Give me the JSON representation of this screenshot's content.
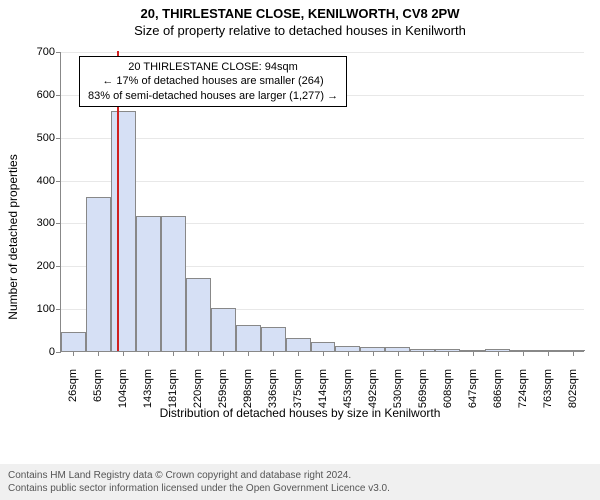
{
  "header": {
    "address": "20, THIRLESTANE CLOSE, KENILWORTH, CV8 2PW",
    "subtitle": "Size of property relative to detached houses in Kenilworth"
  },
  "chart": {
    "type": "histogram",
    "ylabel": "Number of detached properties",
    "xlabel": "Distribution of detached houses by size in Kenilworth",
    "ylim": [
      0,
      700
    ],
    "ytick_step": 100,
    "yticks": [
      0,
      100,
      200,
      300,
      400,
      500,
      600,
      700
    ],
    "xticks": [
      "26sqm",
      "65sqm",
      "104sqm",
      "143sqm",
      "181sqm",
      "220sqm",
      "259sqm",
      "298sqm",
      "336sqm",
      "375sqm",
      "414sqm",
      "453sqm",
      "492sqm",
      "530sqm",
      "569sqm",
      "608sqm",
      "647sqm",
      "686sqm",
      "724sqm",
      "763sqm",
      "802sqm"
    ],
    "bar_fill": "#d6e0f5",
    "bar_stroke": "#888888",
    "grid_color": "#e8e8e8",
    "axis_color": "#888888",
    "background_color": "#ffffff",
    "bar_values": [
      45,
      360,
      560,
      315,
      315,
      170,
      100,
      60,
      55,
      30,
      20,
      12,
      10,
      10,
      5,
      5,
      3,
      5,
      3,
      3,
      2
    ],
    "reference_line": {
      "value_sqm": 94,
      "color": "#d01f1f",
      "width": 2
    },
    "annotation": {
      "line1": "20 THIRLESTANE CLOSE: 94sqm",
      "line2": "← 17% of detached houses are smaller (264)",
      "line3": "83% of semi-detached houses are larger (1,277) →",
      "border_color": "#000000",
      "fontsize": 11
    },
    "label_fontsize": 12,
    "tick_fontsize": 11
  },
  "footer": {
    "line1": "Contains HM Land Registry data © Crown copyright and database right 2024.",
    "line2": "Contains public sector information licensed under the Open Government Licence v3.0."
  }
}
